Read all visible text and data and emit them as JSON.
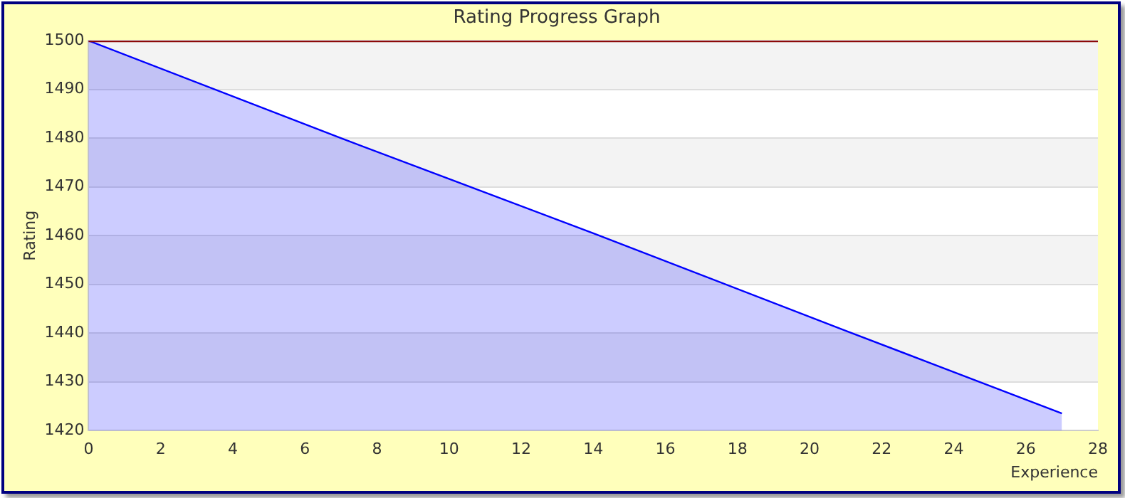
{
  "chart_data": {
    "type": "area",
    "title": "Rating Progress Graph",
    "xlabel": "Experience",
    "ylabel": "Rating",
    "x": [
      0,
      7,
      14,
      21,
      27
    ],
    "series": [
      {
        "color": "#0000ff",
        "values": [
          1500,
          1480,
          1460.5,
          1440.5,
          1423.5
        ]
      }
    ],
    "xlim": [
      0,
      28
    ],
    "xticks": [
      0,
      2,
      4,
      6,
      8,
      10,
      12,
      14,
      16,
      18,
      20,
      22,
      24,
      26,
      28
    ],
    "ylim": [
      1420,
      1500
    ],
    "yticks": [
      1420,
      1430,
      1440,
      1450,
      1460,
      1470,
      1480,
      1490,
      1500
    ],
    "grid": "y",
    "legend": false,
    "marker": "none",
    "line_style": "solid"
  }
}
